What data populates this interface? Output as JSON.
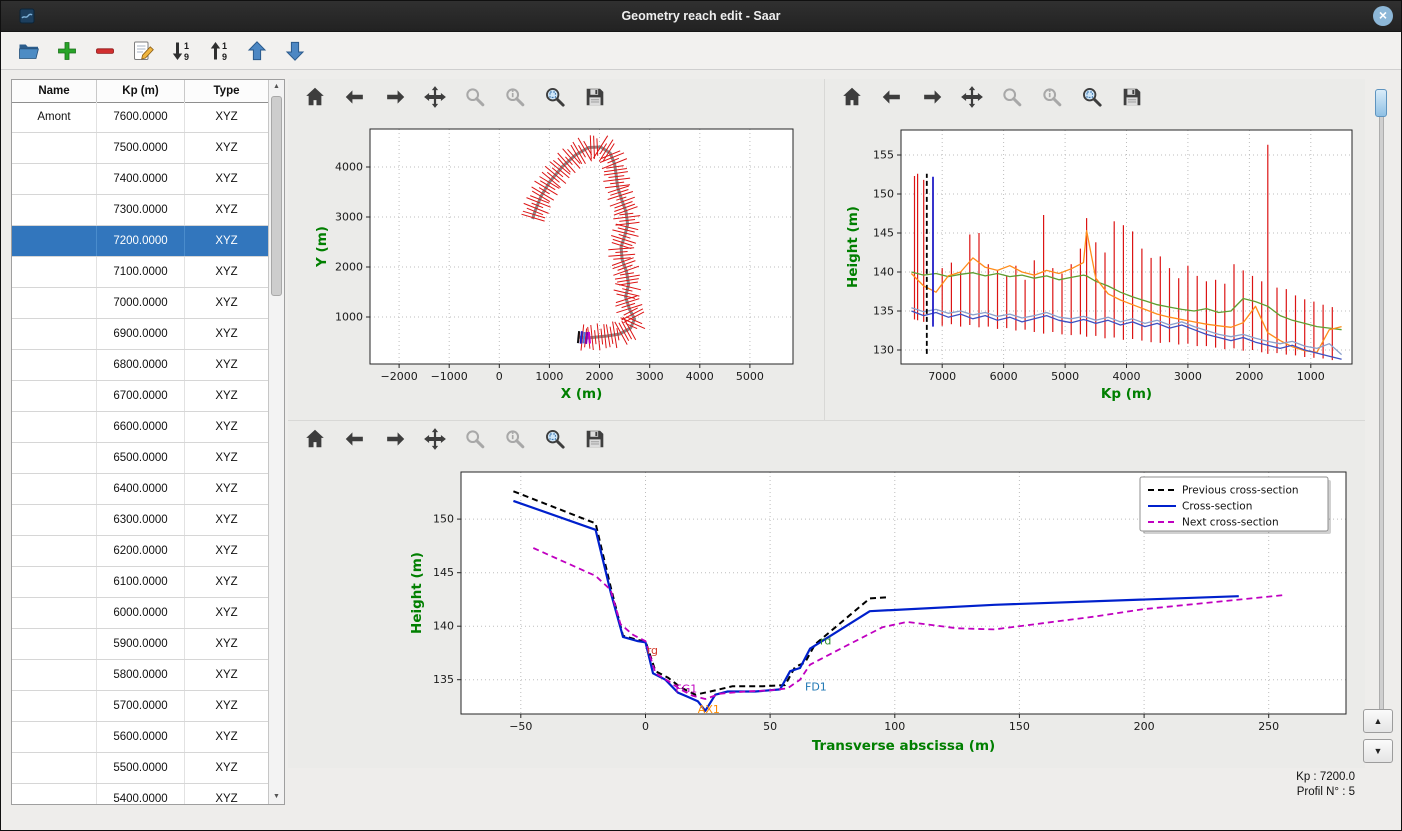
{
  "window": {
    "title": "Geometry reach edit - Saar"
  },
  "main_toolbar": {
    "icons": [
      "open",
      "add",
      "remove",
      "edit",
      "sort-desc",
      "sort-asc",
      "move-up",
      "move-down"
    ]
  },
  "plot_toolbar": {
    "icons": [
      "home",
      "back",
      "forward",
      "pan",
      "zoom",
      "zoom-info",
      "zoom-rect",
      "save"
    ]
  },
  "table": {
    "columns": [
      "Name",
      "Kp (m)",
      "Type"
    ],
    "selected_index": 4,
    "rows": [
      {
        "name": "Amont",
        "kp": "7600.0000",
        "type": "XYZ"
      },
      {
        "name": "",
        "kp": "7500.0000",
        "type": "XYZ"
      },
      {
        "name": "",
        "kp": "7400.0000",
        "type": "XYZ"
      },
      {
        "name": "",
        "kp": "7300.0000",
        "type": "XYZ"
      },
      {
        "name": "",
        "kp": "7200.0000",
        "type": "XYZ"
      },
      {
        "name": "",
        "kp": "7100.0000",
        "type": "XYZ"
      },
      {
        "name": "",
        "kp": "7000.0000",
        "type": "XYZ"
      },
      {
        "name": "",
        "kp": "6900.0000",
        "type": "XYZ"
      },
      {
        "name": "",
        "kp": "6800.0000",
        "type": "XYZ"
      },
      {
        "name": "",
        "kp": "6700.0000",
        "type": "XYZ"
      },
      {
        "name": "",
        "kp": "6600.0000",
        "type": "XYZ"
      },
      {
        "name": "",
        "kp": "6500.0000",
        "type": "XYZ"
      },
      {
        "name": "",
        "kp": "6400.0000",
        "type": "XYZ"
      },
      {
        "name": "",
        "kp": "6300.0000",
        "type": "XYZ"
      },
      {
        "name": "",
        "kp": "6200.0000",
        "type": "XYZ"
      },
      {
        "name": "",
        "kp": "6100.0000",
        "type": "XYZ"
      },
      {
        "name": "",
        "kp": "6000.0000",
        "type": "XYZ"
      },
      {
        "name": "",
        "kp": "5900.0000",
        "type": "XYZ"
      },
      {
        "name": "",
        "kp": "5800.0000",
        "type": "XYZ"
      },
      {
        "name": "",
        "kp": "5700.0000",
        "type": "XYZ"
      },
      {
        "name": "",
        "kp": "5600.0000",
        "type": "XYZ"
      },
      {
        "name": "",
        "kp": "5500.0000",
        "type": "XYZ"
      },
      {
        "name": "",
        "kp": "5400.0000",
        "type": "XYZ"
      }
    ]
  },
  "status": {
    "kp_label": "Kp : 7200.0",
    "profil_label": "Profil N° : 5"
  },
  "chart_data": [
    {
      "type": "line",
      "name": "plan-view",
      "xlabel": "X (m)",
      "ylabel": "Y (m)",
      "xlim": [
        -2580,
        5860
      ],
      "ylim": [
        60,
        4760
      ],
      "xticks": [
        -2000,
        -1000,
        0,
        1000,
        2000,
        3000,
        4000,
        5000
      ],
      "yticks": [
        1000,
        2000,
        3000,
        4000
      ],
      "centerline_color": "#8a8a8a",
      "centerline": [
        [
          1560,
          600
        ],
        [
          1750,
          580
        ],
        [
          1950,
          600
        ],
        [
          2150,
          620
        ],
        [
          2400,
          660
        ],
        [
          2620,
          780
        ],
        [
          2700,
          960
        ],
        [
          2600,
          1150
        ],
        [
          2520,
          1400
        ],
        [
          2580,
          1650
        ],
        [
          2540,
          1900
        ],
        [
          2450,
          2150
        ],
        [
          2430,
          2400
        ],
        [
          2510,
          2650
        ],
        [
          2560,
          2850
        ],
        [
          2530,
          3100
        ],
        [
          2440,
          3350
        ],
        [
          2360,
          3600
        ],
        [
          2330,
          3850
        ],
        [
          2300,
          4060
        ],
        [
          2210,
          4280
        ],
        [
          2020,
          4400
        ],
        [
          1780,
          4390
        ],
        [
          1520,
          4240
        ],
        [
          1260,
          4010
        ],
        [
          1010,
          3710
        ],
        [
          830,
          3410
        ],
        [
          710,
          3110
        ],
        [
          665,
          2960
        ]
      ],
      "cross_ticks": {
        "step": 65,
        "half_length_base": 105,
        "half_length_var": 165,
        "color": "#dc1414"
      },
      "highlight_ticks": [
        {
          "s": 20,
          "color": "#111111",
          "half": 120
        },
        {
          "s": 75,
          "color": "#2222cc",
          "half": 125
        },
        {
          "s": 130,
          "color": "#4a7de0",
          "half": 115
        },
        {
          "s": 185,
          "color": "#7a00b8",
          "half": 120
        },
        {
          "s": 240,
          "color": "#cc00cc",
          "half": 115
        }
      ]
    },
    {
      "type": "line",
      "name": "longitudinal-profile",
      "xlabel": "Kp (m)",
      "ylabel": "Height (m)",
      "xlim": [
        7670,
        330
      ],
      "ylim": [
        128.2,
        158.2
      ],
      "xticks": [
        7000,
        6000,
        5000,
        4000,
        3000,
        2000,
        1000
      ],
      "yticks": [
        130,
        135,
        140,
        145,
        150,
        155
      ],
      "bars": {
        "color": "#dc1414",
        "kp": [
          7450,
          7400,
          7300,
          7150,
          7000,
          6850,
          6700,
          6550,
          6400,
          6250,
          6100,
          5950,
          5800,
          5650,
          5500,
          5350,
          5200,
          5050,
          4900,
          4750,
          4650,
          4500,
          4350,
          4200,
          4050,
          3900,
          3750,
          3600,
          3450,
          3300,
          3150,
          3000,
          2850,
          2700,
          2550,
          2400,
          2250,
          2100,
          1950,
          1800,
          1700,
          1550,
          1400,
          1250,
          1100,
          950,
          800,
          650
        ],
        "ymax": [
          152.3,
          152.6,
          151.8,
          152.0,
          140.5,
          141.2,
          140.0,
          144.8,
          145.0,
          141.0,
          140.2,
          139.5,
          140.8,
          139.0,
          141.5,
          147.3,
          140.5,
          139.8,
          141.0,
          143.0,
          146.9,
          143.8,
          142.5,
          146.5,
          146.0,
          145.2,
          143.0,
          141.8,
          142.0,
          140.5,
          139.2,
          140.8,
          139.5,
          138.8,
          139.0,
          138.5,
          141.0,
          140.2,
          139.5,
          138.8,
          156.3,
          138.0,
          137.8,
          137.0,
          136.5,
          136.2,
          135.8,
          135.5
        ],
        "ymin": [
          133.9,
          133.8,
          133.6,
          133.3,
          133.1,
          133.3,
          133.0,
          133.2,
          132.9,
          133.0,
          132.7,
          132.8,
          132.5,
          132.6,
          132.3,
          132.1,
          132.3,
          132.0,
          131.9,
          132.0,
          131.7,
          131.8,
          131.5,
          131.6,
          131.3,
          131.4,
          131.2,
          131.0,
          130.9,
          131.0,
          130.7,
          130.8,
          130.5,
          130.5,
          130.3,
          130.1,
          130.2,
          129.9,
          130.0,
          129.7,
          129.5,
          129.6,
          129.4,
          129.3,
          129.1,
          129.0,
          128.9,
          128.7
        ]
      },
      "kp": [
        7500,
        7300,
        7100,
        6900,
        6700,
        6500,
        6300,
        6100,
        5900,
        5700,
        5500,
        5300,
        5100,
        4900,
        4700,
        4650,
        4500,
        4300,
        4100,
        3900,
        3700,
        3500,
        3300,
        3100,
        2900,
        2700,
        2500,
        2300,
        2100,
        1900,
        1700,
        1500,
        1300,
        1100,
        900,
        700,
        500
      ],
      "series": [
        {
          "name": "bank-green",
          "color": "#5f9e30",
          "y": [
            140.0,
            139.6,
            139.8,
            139.4,
            139.7,
            139.9,
            139.5,
            139.8,
            139.4,
            139.6,
            139.2,
            139.5,
            139.0,
            139.3,
            139.6,
            139.5,
            138.8,
            138.2,
            137.4,
            136.8,
            136.3,
            135.8,
            135.5,
            135.2,
            135.0,
            135.3,
            134.8,
            135.0,
            136.6,
            136.2,
            135.6,
            134.4,
            133.8,
            133.4,
            133.0,
            132.8,
            132.6
          ]
        },
        {
          "name": "bank-orange",
          "color": "#ff8c1a",
          "y": [
            139.8,
            138.2,
            137.4,
            139.5,
            140.0,
            141.8,
            140.6,
            140.2,
            140.8,
            140.0,
            139.6,
            140.2,
            139.8,
            140.4,
            141.2,
            145.3,
            139.2,
            137.2,
            136.4,
            135.8,
            135.2,
            134.6,
            134.2,
            133.9,
            133.6,
            133.3,
            133.1,
            132.9,
            133.5,
            135.6,
            132.2,
            131.2,
            130.4,
            129.9,
            129.7,
            132.6,
            133.0
          ]
        },
        {
          "name": "bed-blue",
          "color": "#3f51c1",
          "y": [
            135.0,
            134.4,
            134.8,
            134.2,
            134.6,
            134.0,
            134.4,
            133.8,
            134.2,
            133.6,
            134.0,
            134.4,
            133.8,
            133.5,
            133.9,
            133.8,
            133.4,
            133.8,
            133.2,
            133.6,
            133.0,
            133.4,
            132.8,
            133.2,
            132.6,
            132.0,
            131.6,
            131.2,
            131.6,
            131.0,
            130.6,
            130.2,
            130.6,
            130.0,
            129.6,
            129.2,
            128.8
          ]
        },
        {
          "name": "bed-steel",
          "color": "#8aa0cc",
          "y": [
            135.4,
            134.9,
            135.2,
            134.7,
            135.0,
            134.5,
            134.8,
            134.3,
            134.6,
            134.1,
            134.4,
            134.8,
            134.2,
            134.0,
            134.3,
            134.2,
            133.8,
            134.2,
            133.6,
            134.0,
            133.4,
            133.8,
            133.2,
            133.6,
            133.0,
            132.5,
            132.0,
            131.7,
            132.0,
            131.5,
            131.1,
            130.8,
            131.1,
            130.5,
            130.2,
            130.8,
            129.4
          ]
        }
      ],
      "verticals": [
        {
          "name": "previous-cross-section",
          "kp": 7250,
          "ymin": 129.5,
          "ymax": 152.6,
          "color": "#000000",
          "dash": true
        },
        {
          "name": "current-cross-section",
          "kp": 7150,
          "ymin": 133.0,
          "ymax": 152.2,
          "color": "#2222cc",
          "dash": false
        }
      ]
    },
    {
      "type": "line",
      "name": "cross-section",
      "xlabel": "Transverse abscissa (m)",
      "ylabel": "Height (m)",
      "xlim": [
        -74,
        281
      ],
      "ylim": [
        131.8,
        154.4
      ],
      "xticks": [
        -50,
        0,
        50,
        100,
        150,
        200,
        250
      ],
      "yticks": [
        135,
        140,
        145,
        150
      ],
      "legend": [
        {
          "label": "Previous cross-section",
          "color": "#000000",
          "dash": true
        },
        {
          "label": "Cross-section",
          "color": "#0020cc",
          "dash": false
        },
        {
          "label": "Next cross-section",
          "color": "#c000c0",
          "dash": true
        }
      ],
      "series": [
        {
          "name": "previous",
          "color": "#000000",
          "dash": "6 4",
          "width": 2,
          "x": [
            -53,
            -20,
            -14,
            -9,
            -3,
            0,
            4,
            9,
            14,
            20,
            26,
            35,
            47,
            56,
            60,
            64,
            68,
            90,
            97
          ],
          "y": [
            152.6,
            149.6,
            143.7,
            139.1,
            138.7,
            138.6,
            135.8,
            135.2,
            134.3,
            133.6,
            133.9,
            134.4,
            134.4,
            134.5,
            136.2,
            136.6,
            138.3,
            142.6,
            142.7
          ]
        },
        {
          "name": "current",
          "color": "#0020cc",
          "dash": null,
          "width": 2.2,
          "x": [
            -53,
            -20,
            -14,
            -9,
            -3,
            0,
            3,
            8,
            13,
            17,
            21,
            24,
            28,
            33,
            44,
            54,
            58,
            62,
            66,
            90,
            140,
            238
          ],
          "y": [
            151.7,
            149.0,
            143.2,
            139.0,
            138.6,
            138.5,
            135.6,
            135.0,
            133.8,
            133.4,
            133.0,
            132.1,
            133.6,
            133.9,
            133.9,
            134.1,
            135.8,
            136.1,
            137.9,
            141.4,
            142.0,
            142.8
          ]
        },
        {
          "name": "next",
          "color": "#c000c0",
          "dash": "6 4",
          "width": 1.8,
          "x": [
            -45,
            -20,
            -14,
            -10,
            -5,
            0,
            4,
            9,
            14,
            19,
            24,
            30,
            40,
            50,
            57,
            62,
            66,
            80,
            95,
            105,
            125,
            140,
            160,
            180,
            200,
            230,
            256
          ],
          "y": [
            147.3,
            144.7,
            143.4,
            140.2,
            139.2,
            138.6,
            135.6,
            134.9,
            134.1,
            133.5,
            133.2,
            133.7,
            133.9,
            134.0,
            134.2,
            135.0,
            136.4,
            138.1,
            139.9,
            140.4,
            139.8,
            139.7,
            140.3,
            140.9,
            141.6,
            142.3,
            142.9
          ]
        }
      ],
      "annotations": [
        {
          "text": "rg",
          "x": 0.5,
          "y": 137.4,
          "color": "#d43a2a"
        },
        {
          "text": "rd",
          "x": 70,
          "y": 138.3,
          "color": "#2e8b2e"
        },
        {
          "text": "FG1",
          "x": 12,
          "y": 133.8,
          "color": "#c000c0"
        },
        {
          "text": "FD1",
          "x": 64,
          "y": 134.0,
          "color": "#1f77b4"
        },
        {
          "text": "AX1",
          "x": 21,
          "y": 131.9,
          "color": "#ff8c00"
        }
      ]
    }
  ]
}
